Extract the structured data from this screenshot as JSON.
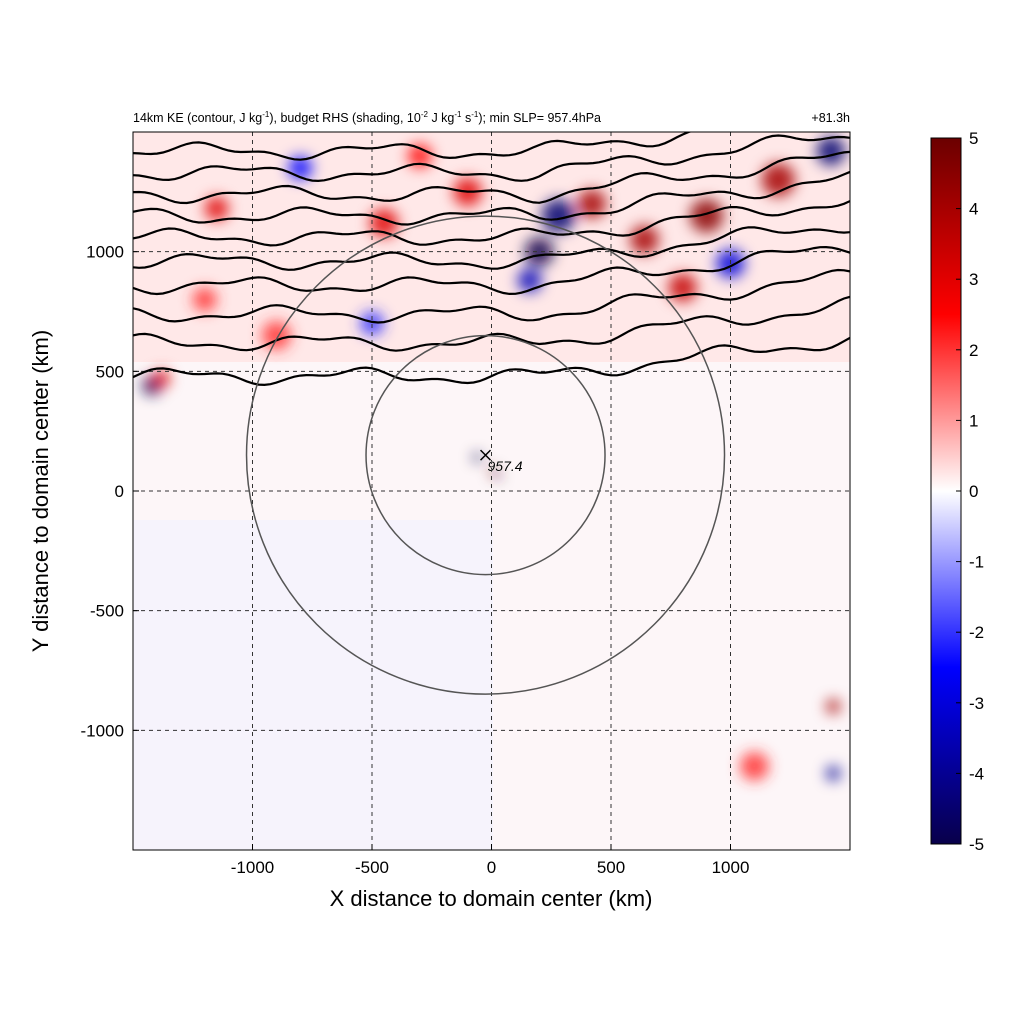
{
  "chart_data": {
    "type": "heatmap",
    "title": {
      "main_html": "14km KE (contour, J kg<tspan dy='-5' font-size='8'>-1</tspan><tspan dy='5'>), budget RHS (shading, 10</tspan><tspan dy='-5' font-size='8'>-2</tspan><tspan dy='5'> J kg</tspan><tspan dy='-5' font-size='8'>-1</tspan><tspan dy='5'> s</tspan><tspan dy='-5' font-size='8'>-1</tspan><tspan dy='5'>); min SLP= 957.4hPa</tspan>",
      "time": "+81.3h"
    },
    "xlabel": "X distance to domain center (km)",
    "ylabel": "Y distance to domain center (km)",
    "xlim": [
      -1500,
      1500
    ],
    "ylim": [
      -1500,
      1500
    ],
    "xticks": [
      -1000,
      -500,
      0,
      500,
      1000
    ],
    "yticks": [
      1000,
      500,
      0,
      -500,
      -1000
    ],
    "colorbar": {
      "range": [
        -5,
        5
      ],
      "ticks": [
        5,
        4,
        3,
        2,
        1,
        0,
        -1,
        -2,
        -3,
        -4,
        -5
      ],
      "colors": [
        "#08004a",
        "#0000ff",
        "#ffffff",
        "#ff0000",
        "#6b0000"
      ]
    },
    "grid": "dashed",
    "storm_center": {
      "x": -25,
      "y": 150,
      "label": "957.4",
      "marker": "x"
    },
    "range_circles_km": [
      500,
      1000
    ],
    "ke_contours_y_km": [
      480,
      620,
      740,
      860,
      960,
      1060,
      1150,
      1240,
      1330,
      1420
    ],
    "shading_blobs": [
      {
        "x": -1420,
        "y": 440,
        "r": 40,
        "v": -5
      },
      {
        "x": -1380,
        "y": 470,
        "r": 35,
        "v": 3
      },
      {
        "x": 200,
        "y": 1000,
        "r": 60,
        "v": -5
      },
      {
        "x": 280,
        "y": 1150,
        "r": 70,
        "v": -4.5
      },
      {
        "x": 160,
        "y": 880,
        "r": 50,
        "v": -3.5
      },
      {
        "x": 420,
        "y": 1200,
        "r": 60,
        "v": 4
      },
      {
        "x": 640,
        "y": 1050,
        "r": 60,
        "v": 4
      },
      {
        "x": 900,
        "y": 1150,
        "r": 70,
        "v": 4.5
      },
      {
        "x": 1200,
        "y": 1300,
        "r": 70,
        "v": 4
      },
      {
        "x": 1420,
        "y": 1420,
        "r": 60,
        "v": -4.5
      },
      {
        "x": 800,
        "y": 850,
        "r": 60,
        "v": 3.5
      },
      {
        "x": 1000,
        "y": 950,
        "r": 60,
        "v": -3
      },
      {
        "x": -1150,
        "y": 1180,
        "r": 50,
        "v": 3
      },
      {
        "x": -450,
        "y": 1120,
        "r": 60,
        "v": 3
      },
      {
        "x": -100,
        "y": 1250,
        "r": 60,
        "v": 3
      },
      {
        "x": -800,
        "y": 1350,
        "r": 50,
        "v": -2.5
      },
      {
        "x": -300,
        "y": 1400,
        "r": 50,
        "v": 2.5
      },
      {
        "x": -1200,
        "y": 800,
        "r": 50,
        "v": 2
      },
      {
        "x": -900,
        "y": 650,
        "r": 60,
        "v": 2
      },
      {
        "x": -500,
        "y": 700,
        "r": 50,
        "v": -2
      },
      {
        "x": -60,
        "y": 140,
        "r": 18,
        "v": -5
      },
      {
        "x": 10,
        "y": 80,
        "r": 16,
        "v": 5
      },
      {
        "x": 30,
        "y": 60,
        "r": 10,
        "v": -5
      },
      {
        "x": 1430,
        "y": -900,
        "r": 30,
        "v": 4
      },
      {
        "x": 1430,
        "y": -1180,
        "r": 30,
        "v": -4
      },
      {
        "x": 1100,
        "y": -1150,
        "r": 60,
        "v": 2
      }
    ]
  }
}
